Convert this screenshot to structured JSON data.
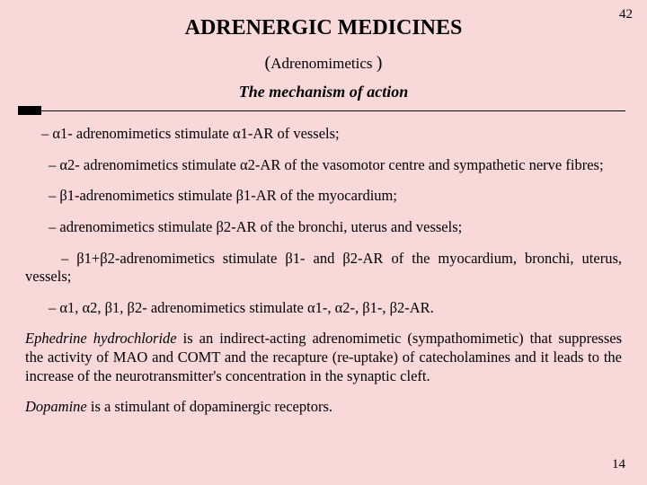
{
  "page": {
    "top_number": "42",
    "bottom_number": "14",
    "title": "ADRENERGIC MEDICINES",
    "subtitle_open": "(",
    "subtitle_text": "Adrenomimetics ",
    "subtitle_close": ")",
    "mechanism": "The mechanism of action"
  },
  "bullets": {
    "b1": "–  α1- adrenomimetics stimulate α1-AR of vessels;",
    "b2": "– α2- adrenomimetics stimulate α2-AR of the vasomotor centre and sympathetic nerve fibres;",
    "b3": "–  β1-adrenomimetics stimulate β1-AR of the myocardium;",
    "b4": "–  adrenomimetics stimulate β2-AR of the bronchi, uterus and vessels;",
    "b5": "– β1+β2-adrenomimetics stimulate β1- and β2-AR of the myocardium, bronchi, uterus, vessels;",
    "b6": "–  α1, α2, β1, β2- adrenomimetics stimulate α1-, α2-, β1-, β2-AR."
  },
  "paras": {
    "eph_lead": "Ephedrine hydrochloride",
    "eph_rest": " is an indirect-acting adrenomimetic (sympathomimetic) that suppresses the activity of MAO and COMT and the recapture (re-uptake) of catecholamines and it leads to the increase of the neurotransmitter's concentration in the synaptic cleft.",
    "dop_lead": "Dopamine",
    "dop_rest": " is a stimulant of dopaminergic receptors."
  }
}
